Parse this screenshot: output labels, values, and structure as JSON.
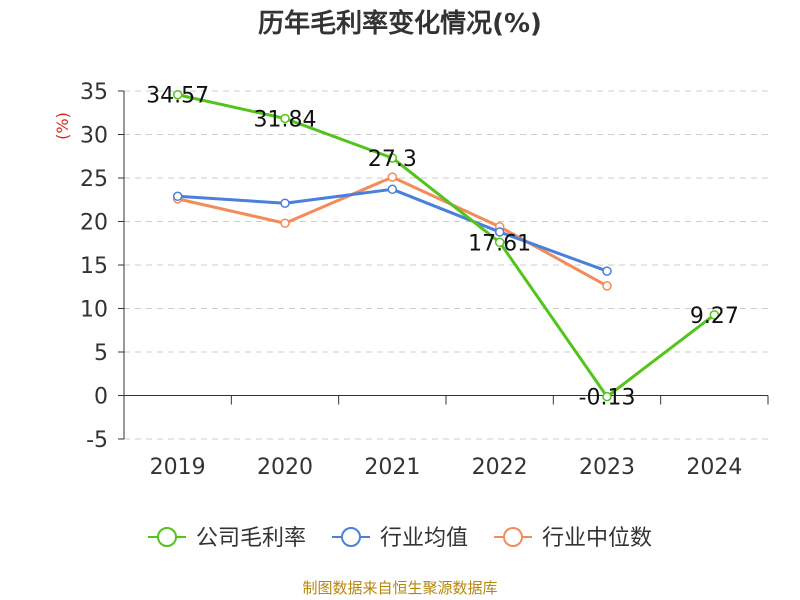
{
  "chart_data": {
    "type": "line",
    "title": "历年毛利率变化情况(%)",
    "ylabel": "(%)",
    "xlabel": "",
    "categories": [
      "2019",
      "2020",
      "2021",
      "2022",
      "2023",
      "2024"
    ],
    "ylim": [
      -5,
      35
    ],
    "yticks": [
      35,
      30,
      25,
      20,
      15,
      10,
      5,
      0,
      -5
    ],
    "grid": true,
    "legend_position": "bottom",
    "series": [
      {
        "name": "公司毛利率",
        "color": "#52c41a",
        "values": [
          34.57,
          31.84,
          27.3,
          17.61,
          -0.13,
          9.27
        ],
        "labels": [
          "34.57",
          "31.84",
          "27.3",
          "17.61",
          "-0.13",
          "9.27"
        ]
      },
      {
        "name": "行业均值",
        "color": "#4a7fdb",
        "values": [
          22.9,
          22.1,
          23.7,
          18.8,
          14.3,
          null
        ]
      },
      {
        "name": "行业中位数",
        "color": "#f38b5a",
        "values": [
          22.6,
          19.8,
          25.1,
          19.4,
          12.6,
          null
        ]
      }
    ]
  },
  "source_text": "制图数据来自恒生聚源数据库"
}
